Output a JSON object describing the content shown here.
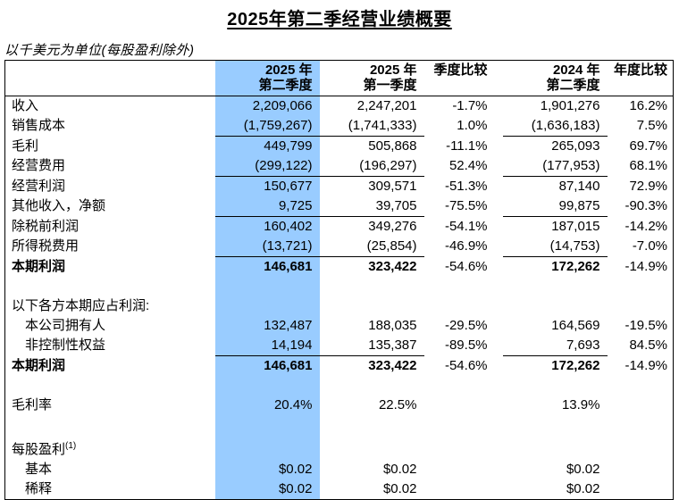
{
  "title": "2025年第二季经营业绩概要",
  "subtitle": "以千美元为单位(每股盈利除外)",
  "highlight_color": "#99CCFF",
  "table": {
    "columns": [
      {
        "key": "row-label",
        "lines": [],
        "highlight": false
      },
      {
        "key": "q2-2025",
        "lines": [
          "2025 年",
          "第二季度"
        ],
        "highlight": true
      },
      {
        "key": "q1-2025",
        "lines": [
          "2025 年",
          "第一季度"
        ],
        "highlight": false
      },
      {
        "key": "qoq-change",
        "lines": [
          "季度比较"
        ],
        "highlight": false
      },
      {
        "key": "q2-2024",
        "lines": [
          "2024 年",
          "第二季度"
        ],
        "highlight": false
      },
      {
        "key": "yoy-change",
        "lines": [
          "年度比较"
        ],
        "highlight": false
      }
    ],
    "rows": [
      {
        "label": "收入",
        "cells": [
          "2,209,066",
          "2,247,201",
          "-1.7%",
          "1,901,276",
          "16.2%"
        ]
      },
      {
        "label": "销售成本",
        "cells": [
          "(1,759,267)",
          "(1,741,333)",
          "1.0%",
          "(1,636,183)",
          "7.5%"
        ],
        "underline": true
      },
      {
        "label": "毛利",
        "cells": [
          "449,799",
          "505,868",
          "-11.1%",
          "265,093",
          "69.7%"
        ]
      },
      {
        "label": "经营费用",
        "cells": [
          "(299,122)",
          "(196,297)",
          "52.4%",
          "(177,953)",
          "68.1%"
        ],
        "underline": true
      },
      {
        "label": "经营利润",
        "cells": [
          "150,677",
          "309,571",
          "-51.3%",
          "87,140",
          "72.9%"
        ]
      },
      {
        "label": "其他收入，净额",
        "cells": [
          "9,725",
          "39,705",
          "-75.5%",
          "99,875",
          "-90.3%"
        ],
        "underline": true
      },
      {
        "label": "除税前利润",
        "cells": [
          "160,402",
          "349,276",
          "-54.1%",
          "187,015",
          "-14.2%"
        ]
      },
      {
        "label": "所得税费用",
        "cells": [
          "(13,721)",
          "(25,854)",
          "-46.9%",
          "(14,753)",
          "-7.0%"
        ],
        "underline": true
      },
      {
        "label": "本期利润",
        "cells": [
          "146,681",
          "323,422",
          "-54.6%",
          "172,262",
          "-14.9%"
        ],
        "bold": true
      },
      {
        "blank": true,
        "cells": [
          "",
          "",
          "",
          "",
          ""
        ]
      },
      {
        "label": "以下各方本期应占利润:",
        "cells": [
          "",
          "",
          "",
          "",
          ""
        ]
      },
      {
        "label": "本公司拥有人",
        "cells": [
          "132,487",
          "188,035",
          "-29.5%",
          "164,569",
          "-19.5%"
        ],
        "indent": true
      },
      {
        "label": "非控制性权益",
        "cells": [
          "14,194",
          "135,387",
          "-89.5%",
          "7,693",
          "84.5%"
        ],
        "indent": true,
        "underline": true
      },
      {
        "label": "本期利润",
        "cells": [
          "146,681",
          "323,422",
          "-54.6%",
          "172,262",
          "-14.9%"
        ],
        "bold": true
      },
      {
        "blank": true,
        "cells": [
          "",
          "",
          "",
          "",
          ""
        ]
      },
      {
        "label": "毛利率",
        "cells": [
          "20.4%",
          "22.5%",
          "",
          "13.9%",
          ""
        ]
      },
      {
        "blank": true,
        "tall": true,
        "cells": [
          "",
          "",
          "",
          "",
          ""
        ]
      },
      {
        "label": "每股盈利",
        "sup": "(1)",
        "cells": [
          "",
          "",
          "",
          "",
          ""
        ]
      },
      {
        "label": "基本",
        "cells": [
          "$0.02",
          "$0.02",
          "",
          "$0.02",
          ""
        ],
        "indent": true
      },
      {
        "label": "稀释",
        "cells": [
          "$0.02",
          "$0.02",
          "",
          "$0.02",
          ""
        ],
        "indent": true
      }
    ]
  }
}
